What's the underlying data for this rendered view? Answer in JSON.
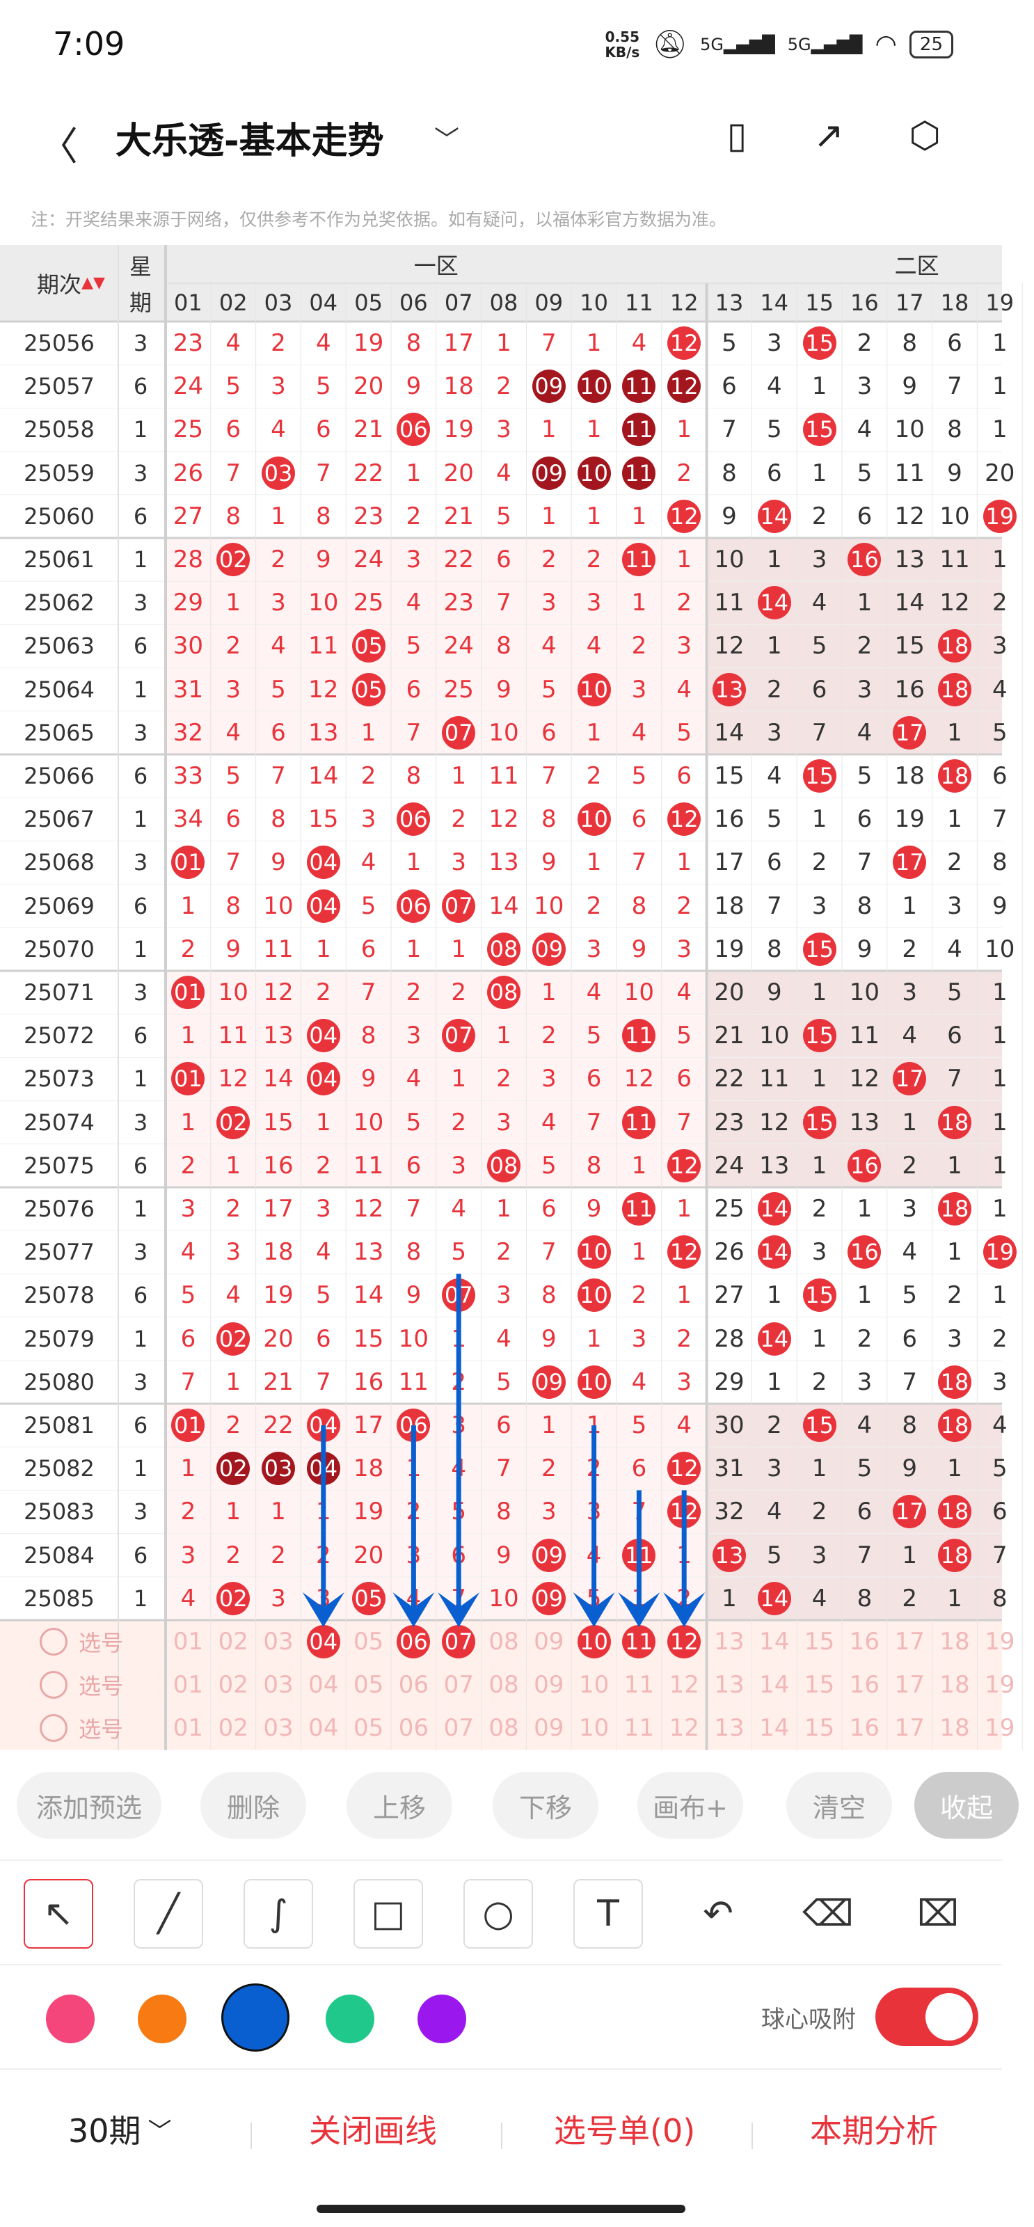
{
  "status_bar": {
    "time": "7:09",
    "net_speed_top": "0.55",
    "net_speed_bottom": "KB/s",
    "signal1": "5G",
    "signal2": "5G",
    "battery": "25"
  },
  "header": {
    "title": "大乐透-基本走势"
  },
  "note": "注：开奖结果来源于网络，仅供参考不作为兑奖依据。如有疑问，以福体彩官方数据为准。",
  "table": {
    "col_period": "期次",
    "col_week": [
      "星",
      "期"
    ],
    "zone1": "一区",
    "zone2": "二区",
    "numbers": [
      "01",
      "02",
      "03",
      "04",
      "05",
      "06",
      "07",
      "08",
      "09",
      "10",
      "11",
      "12",
      "13",
      "14",
      "15",
      "16",
      "17",
      "18",
      "19"
    ],
    "rows": [
      {
        "period": "25056",
        "week": "3",
        "cells": [
          "23",
          "4",
          "2",
          "4",
          "19",
          "8",
          "17",
          "1",
          "7",
          "1",
          "4",
          "12",
          "5",
          "3",
          "15",
          "2",
          "8",
          "6",
          "1"
        ]
      },
      {
        "period": "25057",
        "week": "6",
        "cells": [
          "24",
          "5",
          "3",
          "5",
          "20",
          "9",
          "18",
          "2",
          "09",
          "10",
          "11",
          "12",
          "6",
          "4",
          "1",
          "3",
          "9",
          "7",
          "1"
        ]
      },
      {
        "period": "25058",
        "week": "1",
        "cells": [
          "25",
          "6",
          "4",
          "6",
          "21",
          "06",
          "19",
          "3",
          "1",
          "1",
          "11",
          "1",
          "7",
          "5",
          "15",
          "4",
          "10",
          "8",
          "1"
        ]
      },
      {
        "period": "25059",
        "week": "3",
        "cells": [
          "26",
          "7",
          "03",
          "7",
          "22",
          "1",
          "20",
          "4",
          "09",
          "10",
          "11",
          "2",
          "8",
          "6",
          "1",
          "5",
          "11",
          "9",
          "20"
        ]
      },
      {
        "period": "25060",
        "week": "6",
        "cells": [
          "27",
          "8",
          "1",
          "8",
          "23",
          "2",
          "21",
          "5",
          "1",
          "1",
          "1",
          "12",
          "9",
          "14",
          "2",
          "6",
          "12",
          "10",
          "19"
        ]
      },
      {
        "period": "25061",
        "week": "1",
        "cells": [
          "28",
          "02",
          "2",
          "9",
          "24",
          "3",
          "22",
          "6",
          "2",
          "2",
          "11",
          "1",
          "10",
          "1",
          "3",
          "16",
          "13",
          "11",
          "1"
        ]
      },
      {
        "period": "25062",
        "week": "3",
        "cells": [
          "29",
          "1",
          "3",
          "10",
          "25",
          "4",
          "23",
          "7",
          "3",
          "3",
          "1",
          "2",
          "11",
          "14",
          "4",
          "1",
          "14",
          "12",
          "2"
        ]
      },
      {
        "period": "25063",
        "week": "6",
        "cells": [
          "30",
          "2",
          "4",
          "11",
          "05",
          "5",
          "24",
          "8",
          "4",
          "4",
          "2",
          "3",
          "12",
          "1",
          "5",
          "2",
          "15",
          "18",
          "3"
        ]
      },
      {
        "period": "25064",
        "week": "1",
        "cells": [
          "31",
          "3",
          "5",
          "12",
          "05",
          "6",
          "25",
          "9",
          "5",
          "10",
          "3",
          "4",
          "13",
          "2",
          "6",
          "3",
          "16",
          "18",
          "4"
        ]
      },
      {
        "period": "25065",
        "week": "3",
        "cells": [
          "32",
          "4",
          "6",
          "13",
          "1",
          "7",
          "07",
          "10",
          "6",
          "1",
          "4",
          "5",
          "14",
          "3",
          "7",
          "4",
          "17",
          "1",
          "5"
        ]
      },
      {
        "period": "25066",
        "week": "6",
        "cells": [
          "33",
          "5",
          "7",
          "14",
          "2",
          "8",
          "1",
          "11",
          "7",
          "2",
          "5",
          "6",
          "15",
          "4",
          "15",
          "5",
          "18",
          "18",
          "6"
        ]
      },
      {
        "period": "25067",
        "week": "1",
        "cells": [
          "34",
          "6",
          "8",
          "15",
          "3",
          "06",
          "2",
          "12",
          "8",
          "10",
          "6",
          "12",
          "16",
          "5",
          "1",
          "6",
          "19",
          "1",
          "7"
        ]
      },
      {
        "period": "25068",
        "week": "3",
        "cells": [
          "01",
          "7",
          "9",
          "04",
          "4",
          "1",
          "3",
          "13",
          "9",
          "1",
          "7",
          "1",
          "17",
          "6",
          "2",
          "7",
          "17",
          "2",
          "8"
        ]
      },
      {
        "period": "25069",
        "week": "6",
        "cells": [
          "1",
          "8",
          "10",
          "04",
          "5",
          "06",
          "07",
          "14",
          "10",
          "2",
          "8",
          "2",
          "18",
          "7",
          "3",
          "8",
          "1",
          "3",
          "9"
        ]
      },
      {
        "period": "25070",
        "week": "1",
        "cells": [
          "2",
          "9",
          "11",
          "1",
          "6",
          "1",
          "1",
          "08",
          "09",
          "3",
          "9",
          "3",
          "19",
          "8",
          "15",
          "9",
          "2",
          "4",
          "10"
        ]
      },
      {
        "period": "25071",
        "week": "3",
        "cells": [
          "01",
          "10",
          "12",
          "2",
          "7",
          "2",
          "2",
          "08",
          "1",
          "4",
          "10",
          "4",
          "20",
          "9",
          "1",
          "10",
          "3",
          "5",
          "1"
        ]
      },
      {
        "period": "25072",
        "week": "6",
        "cells": [
          "1",
          "11",
          "13",
          "04",
          "8",
          "3",
          "07",
          "1",
          "2",
          "5",
          "11",
          "5",
          "21",
          "10",
          "15",
          "11",
          "4",
          "6",
          "1"
        ]
      },
      {
        "period": "25073",
        "week": "1",
        "cells": [
          "01",
          "12",
          "14",
          "04",
          "9",
          "4",
          "1",
          "2",
          "3",
          "6",
          "12",
          "6",
          "22",
          "11",
          "1",
          "12",
          "17",
          "7",
          "1"
        ]
      },
      {
        "period": "25074",
        "week": "3",
        "cells": [
          "1",
          "02",
          "15",
          "1",
          "10",
          "5",
          "2",
          "3",
          "4",
          "7",
          "11",
          "7",
          "23",
          "12",
          "15",
          "13",
          "1",
          "18",
          "1"
        ]
      },
      {
        "period": "25075",
        "week": "6",
        "cells": [
          "2",
          "1",
          "16",
          "2",
          "11",
          "6",
          "3",
          "08",
          "5",
          "8",
          "1",
          "12",
          "24",
          "13",
          "1",
          "16",
          "2",
          "1",
          "1"
        ]
      },
      {
        "period": "25076",
        "week": "1",
        "cells": [
          "3",
          "2",
          "17",
          "3",
          "12",
          "7",
          "4",
          "1",
          "6",
          "9",
          "11",
          "1",
          "25",
          "14",
          "2",
          "1",
          "3",
          "18",
          "1"
        ]
      },
      {
        "period": "25077",
        "week": "3",
        "cells": [
          "4",
          "3",
          "18",
          "4",
          "13",
          "8",
          "5",
          "2",
          "7",
          "10",
          "1",
          "12",
          "26",
          "14",
          "3",
          "16",
          "4",
          "1",
          "19"
        ]
      },
      {
        "period": "25078",
        "week": "6",
        "cells": [
          "5",
          "4",
          "19",
          "5",
          "14",
          "9",
          "07",
          "3",
          "8",
          "10",
          "2",
          "1",
          "27",
          "1",
          "15",
          "1",
          "5",
          "2",
          "1"
        ]
      },
      {
        "period": "25079",
        "week": "1",
        "cells": [
          "6",
          "02",
          "20",
          "6",
          "15",
          "10",
          "1",
          "4",
          "9",
          "1",
          "3",
          "2",
          "28",
          "14",
          "1",
          "2",
          "6",
          "3",
          "2"
        ]
      },
      {
        "period": "25080",
        "week": "3",
        "cells": [
          "7",
          "1",
          "21",
          "7",
          "16",
          "11",
          "2",
          "5",
          "09",
          "10",
          "4",
          "3",
          "29",
          "1",
          "2",
          "3",
          "7",
          "18",
          "3"
        ]
      },
      {
        "period": "25081",
        "week": "6",
        "cells": [
          "01",
          "2",
          "22",
          "04",
          "17",
          "06",
          "3",
          "6",
          "1",
          "1",
          "5",
          "4",
          "30",
          "2",
          "15",
          "4",
          "8",
          "18",
          "4"
        ]
      },
      {
        "period": "25082",
        "week": "1",
        "cells": [
          "1",
          "02",
          "03",
          "04",
          "18",
          "1",
          "4",
          "7",
          "2",
          "2",
          "6",
          "12",
          "31",
          "3",
          "1",
          "5",
          "9",
          "1",
          "5"
        ]
      },
      {
        "period": "25083",
        "week": "3",
        "cells": [
          "2",
          "1",
          "1",
          "1",
          "19",
          "2",
          "5",
          "8",
          "3",
          "3",
          "7",
          "12",
          "32",
          "4",
          "2",
          "6",
          "17",
          "18",
          "6"
        ]
      },
      {
        "period": "25084",
        "week": "6",
        "cells": [
          "3",
          "2",
          "2",
          "2",
          "20",
          "3",
          "6",
          "9",
          "09",
          "4",
          "11",
          "1",
          "13",
          "5",
          "3",
          "7",
          "1",
          "18",
          "7"
        ]
      },
      {
        "period": "25085",
        "week": "1",
        "cells": [
          "4",
          "02",
          "3",
          "3",
          "05",
          "4",
          "7",
          "10",
          "09",
          "5",
          "1",
          "2",
          "1",
          "14",
          "4",
          "8",
          "2",
          "1",
          "8"
        ]
      }
    ],
    "pick_label": "选号",
    "pick_rows": [
      [
        "01",
        "02",
        "03",
        "04",
        "05",
        "06",
        "07",
        "08",
        "09",
        "10",
        "11",
        "12",
        "13",
        "14",
        "15",
        "16",
        "17",
        "18",
        "19"
      ],
      [
        "01",
        "02",
        "03",
        "04",
        "05",
        "06",
        "07",
        "08",
        "09",
        "10",
        "11",
        "12",
        "13",
        "14",
        "15",
        "16",
        "17",
        "18",
        "19"
      ],
      [
        "01",
        "02",
        "03",
        "04",
        "05",
        "06",
        "07",
        "08",
        "09",
        "10",
        "11",
        "12",
        "13",
        "14",
        "15",
        "16",
        "17",
        "18",
        "19"
      ]
    ],
    "picked": [
      "04",
      "06",
      "07",
      "10",
      "11",
      "12"
    ]
  },
  "actions": {
    "add": "添加预选",
    "delete": "删除",
    "up": "上移",
    "down": "下移",
    "canvas": "画布+",
    "clear": "清空",
    "collapse": "收起"
  },
  "draw_tools": [
    "select-arrow",
    "line",
    "curve",
    "rectangle",
    "circle",
    "text",
    "undo",
    "eraser",
    "clear-all"
  ],
  "colors": [
    "#f4467b",
    "#f77b12",
    "#0a5fd0",
    "#20c98b",
    "#9a18ee"
  ],
  "accent": "#e8333b",
  "dark_ball": "#a3161d",
  "snap_label": "球心吸附",
  "bottom": {
    "periods": "30期",
    "close_draw": "关闭画线",
    "pick_list": "选号单(0)",
    "analysis": "本期分析"
  }
}
